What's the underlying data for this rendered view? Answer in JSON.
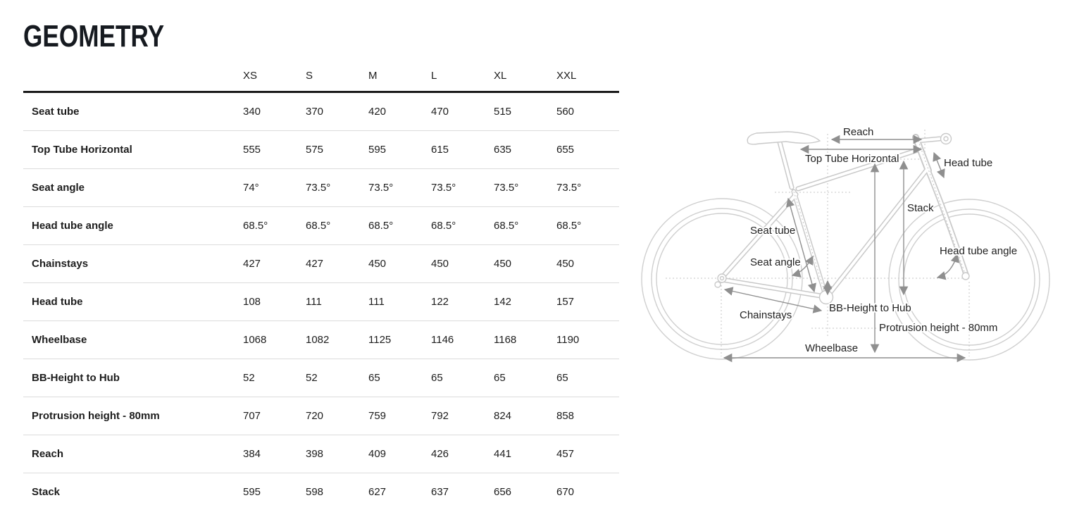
{
  "page": {
    "title": "GEOMETRY"
  },
  "colors": {
    "text": "#1a1a1a",
    "header_rule": "#1a1a1a",
    "row_separator": "#dcdcdc",
    "diagram_line": "#c9c9c9",
    "diagram_arrow": "#8f8f8f"
  },
  "table": {
    "size_headers": [
      "XS",
      "S",
      "M",
      "L",
      "XL",
      "XXL"
    ],
    "rows": [
      {
        "label": "Seat tube",
        "values": [
          "340",
          "370",
          "420",
          "470",
          "515",
          "560"
        ]
      },
      {
        "label": "Top Tube Horizontal",
        "values": [
          "555",
          "575",
          "595",
          "615",
          "635",
          "655"
        ]
      },
      {
        "label": "Seat angle",
        "values": [
          "74°",
          "73.5°",
          "73.5°",
          "73.5°",
          "73.5°",
          "73.5°"
        ]
      },
      {
        "label": "Head tube angle",
        "values": [
          "68.5°",
          "68.5°",
          "68.5°",
          "68.5°",
          "68.5°",
          "68.5°"
        ]
      },
      {
        "label": "Chainstays",
        "values": [
          "427",
          "427",
          "450",
          "450",
          "450",
          "450"
        ]
      },
      {
        "label": "Head tube",
        "values": [
          "108",
          "111",
          "111",
          "122",
          "142",
          "157"
        ]
      },
      {
        "label": "Wheelbase",
        "values": [
          "1068",
          "1082",
          "1125",
          "1146",
          "1168",
          "1190"
        ]
      },
      {
        "label": "BB-Height to Hub",
        "values": [
          "52",
          "52",
          "65",
          "65",
          "65",
          "65"
        ]
      },
      {
        "label": "Protrusion height - 80mm",
        "values": [
          "707",
          "720",
          "759",
          "792",
          "824",
          "858"
        ]
      },
      {
        "label": "Reach",
        "values": [
          "384",
          "398",
          "409",
          "426",
          "441",
          "457"
        ]
      },
      {
        "label": "Stack",
        "values": [
          "595",
          "598",
          "627",
          "637",
          "656",
          "670"
        ]
      }
    ]
  },
  "diagram": {
    "labels": {
      "reach": "Reach",
      "top_tube_horizontal": "Top Tube Horizontal",
      "head_tube": "Head tube",
      "stack": "Stack",
      "seat_tube": "Seat tube",
      "seat_angle": "Seat angle",
      "head_tube_angle": "Head tube angle",
      "chainstays": "Chainstays",
      "bb_height_to_hub": "BB-Height to Hub",
      "protrusion_height": "Protrusion height - 80mm",
      "wheelbase": "Wheelbase"
    }
  }
}
